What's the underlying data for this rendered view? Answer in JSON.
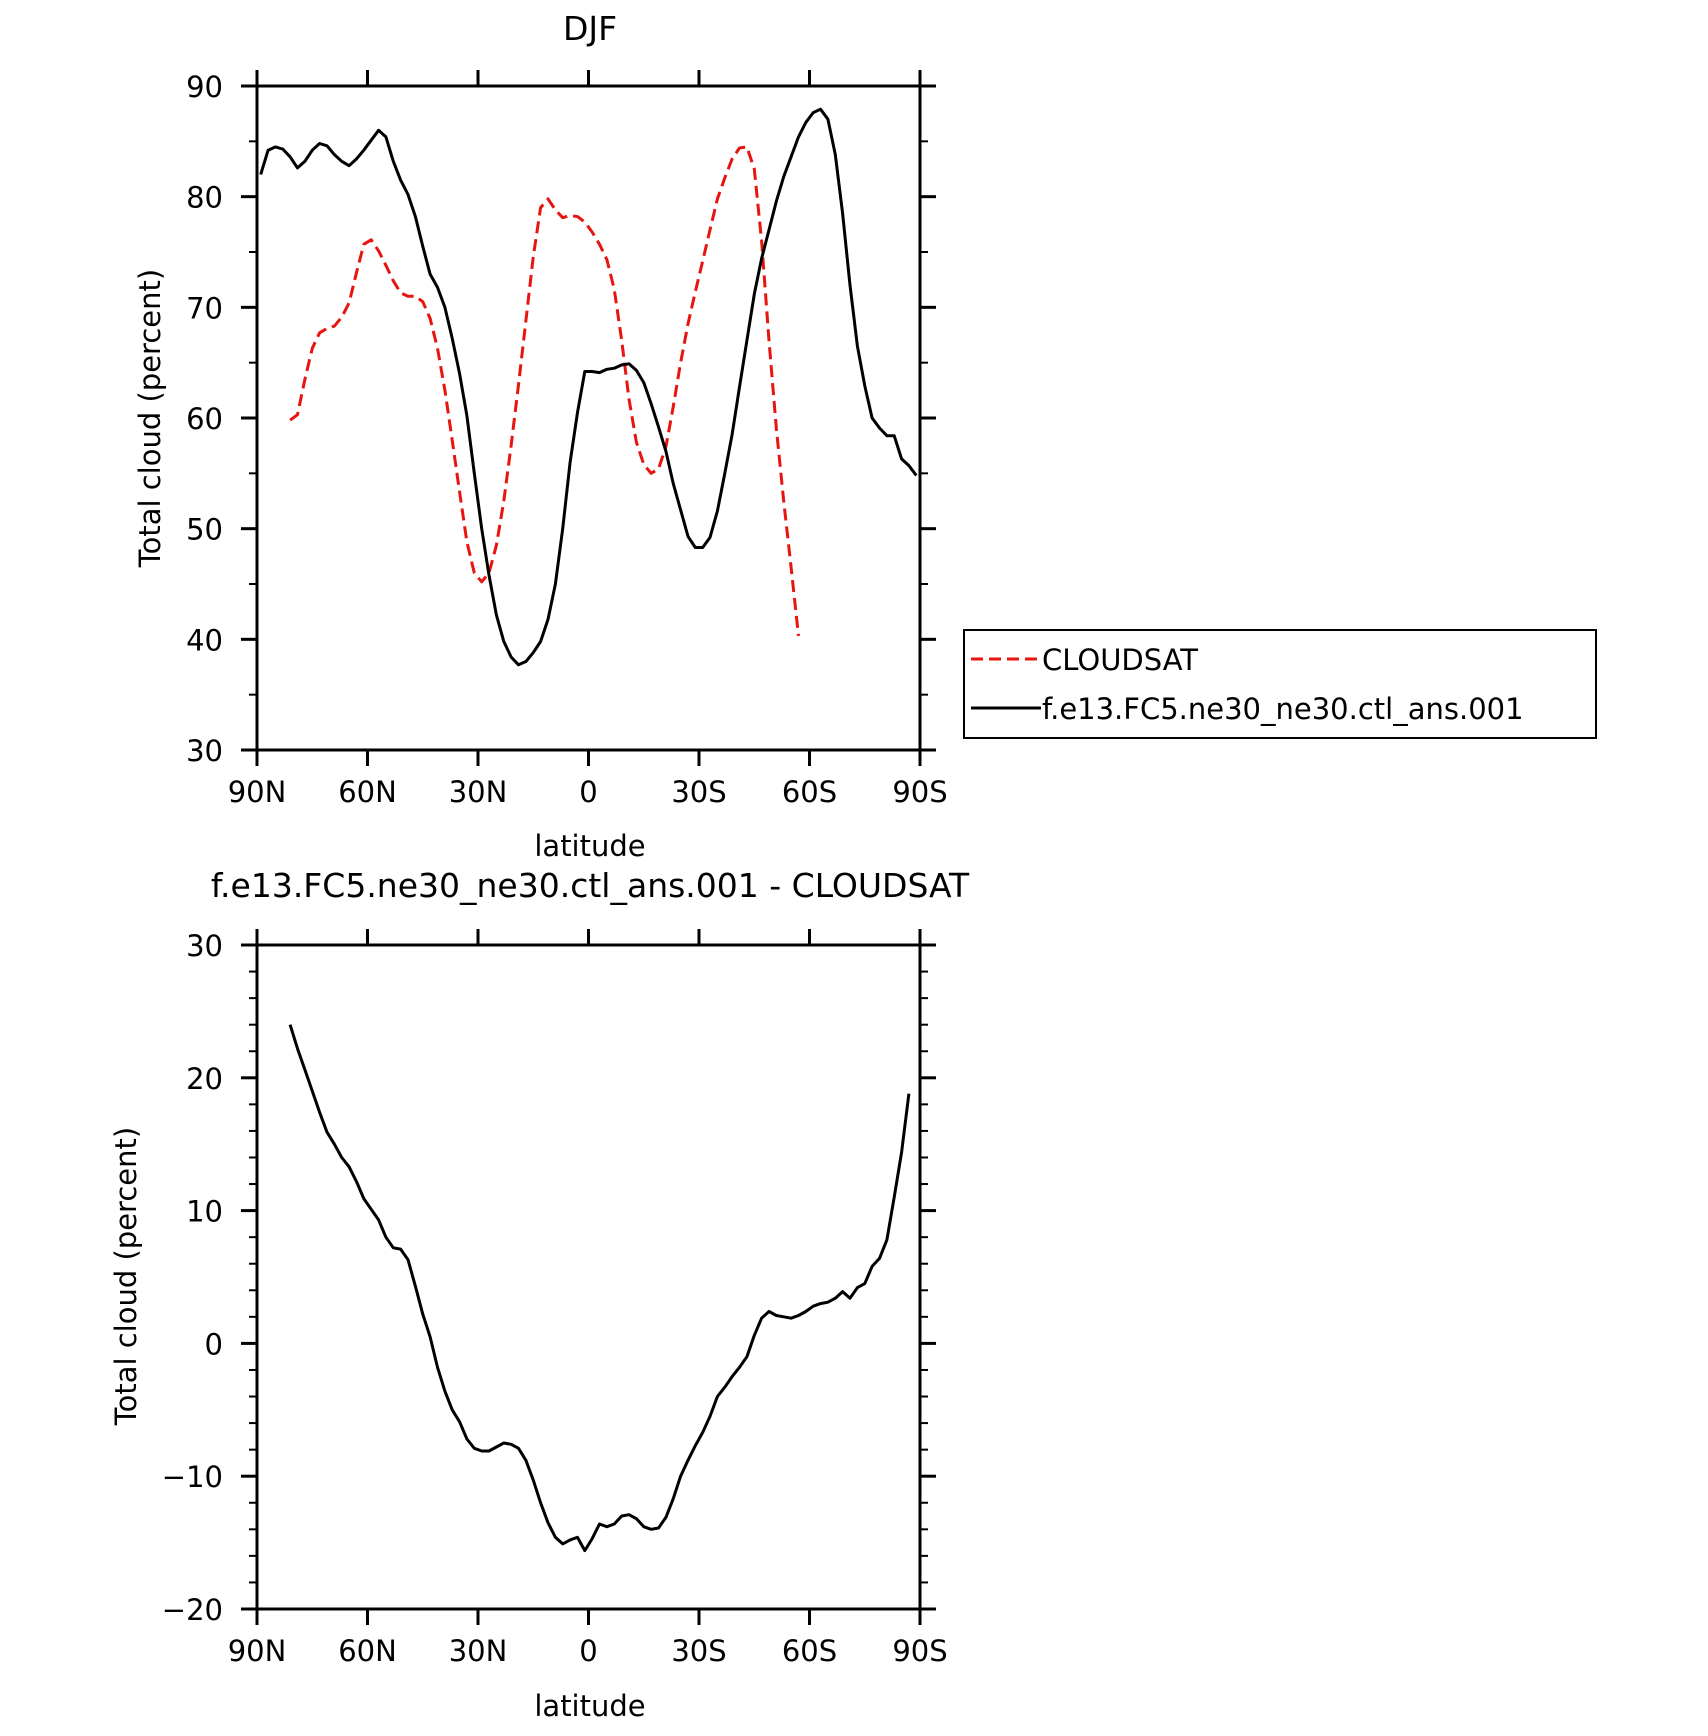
{
  "chart_data": [
    {
      "type": "line",
      "title": "DJF",
      "xlabel": "latitude",
      "ylabel": "Total cloud (percent)",
      "xlim": [
        90,
        -90
      ],
      "ylim": [
        30,
        90
      ],
      "x_axis_note": "latitude in degrees, positive = N, negative = S",
      "xticks": [
        {
          "value": 90,
          "label": "90N"
        },
        {
          "value": 60,
          "label": "60N"
        },
        {
          "value": 30,
          "label": "30N"
        },
        {
          "value": 0,
          "label": "0"
        },
        {
          "value": -30,
          "label": "30S"
        },
        {
          "value": -60,
          "label": "60S"
        },
        {
          "value": -90,
          "label": "90S"
        }
      ],
      "yticks": [
        {
          "value": 30,
          "label": "30"
        },
        {
          "value": 40,
          "label": "40"
        },
        {
          "value": 50,
          "label": "50"
        },
        {
          "value": 60,
          "label": "60"
        },
        {
          "value": 70,
          "label": "70"
        },
        {
          "value": 80,
          "label": "80"
        },
        {
          "value": 90,
          "label": "90"
        }
      ],
      "grid": false,
      "legend_position": "right",
      "series": [
        {
          "name": "CLOUDSAT",
          "color": "#e8140f",
          "dash": true,
          "points": [
            [
              81,
              59.8
            ],
            [
              79,
              60.3
            ],
            [
              77,
              63.5
            ],
            [
              75,
              66.3
            ],
            [
              73,
              67.7
            ],
            [
              71,
              68.1
            ],
            [
              69,
              68.3
            ],
            [
              67,
              69.1
            ],
            [
              65,
              70.4
            ],
            [
              63,
              73.1
            ],
            [
              61,
              75.7
            ],
            [
              59,
              76.1
            ],
            [
              57,
              75.1
            ],
            [
              55,
              73.8
            ],
            [
              53,
              72.4
            ],
            [
              51,
              71.3
            ],
            [
              49,
              71
            ],
            [
              47,
              71
            ],
            [
              45,
              70.5
            ],
            [
              43,
              69
            ],
            [
              41,
              66.3
            ],
            [
              39,
              62.5
            ],
            [
              37,
              58
            ],
            [
              35,
              53.3
            ],
            [
              33,
              48.8
            ],
            [
              31,
              46
            ],
            [
              29,
              45.2
            ],
            [
              27,
              46
            ],
            [
              25,
              48.5
            ],
            [
              23,
              52.5
            ],
            [
              21,
              57.5
            ],
            [
              19,
              63
            ],
            [
              17,
              68.8
            ],
            [
              15,
              74.6
            ],
            [
              13,
              79
            ],
            [
              11,
              79.8
            ],
            [
              9,
              78.8
            ],
            [
              7,
              78.1
            ],
            [
              5,
              78.3
            ],
            [
              3,
              78.2
            ],
            [
              1,
              77.7
            ],
            [
              -1,
              76.8
            ],
            [
              -3,
              75.7
            ],
            [
              -5,
              74.3
            ],
            [
              -7,
              71.6
            ],
            [
              -9,
              67
            ],
            [
              -11,
              61.7
            ],
            [
              -13,
              57.8
            ],
            [
              -15,
              55.8
            ],
            [
              -17,
              55
            ],
            [
              -19,
              55.4
            ],
            [
              -21,
              57.4
            ],
            [
              -23,
              61
            ],
            [
              -25,
              65
            ],
            [
              -27,
              68.5
            ],
            [
              -29,
              71.4
            ],
            [
              -31,
              74.2
            ],
            [
              -33,
              77
            ],
            [
              -35,
              79.8
            ],
            [
              -37,
              81.7
            ],
            [
              -39,
              83.4
            ],
            [
              -41,
              84.4
            ],
            [
              -43,
              84.5
            ],
            [
              -45,
              82.5
            ],
            [
              -47,
              76
            ],
            [
              -49,
              67
            ],
            [
              -51,
              59
            ],
            [
              -53,
              52.5
            ],
            [
              -55,
              46.5
            ],
            [
              -57,
              40.3
            ]
          ]
        },
        {
          "name": "f.e13.FC5.ne30_ne30.ctl_ans.001",
          "color": "#000000",
          "dash": false,
          "points": [
            [
              89,
              82
            ],
            [
              87,
              84.2
            ],
            [
              85,
              84.5
            ],
            [
              83,
              84.3
            ],
            [
              81,
              83.6
            ],
            [
              79,
              82.6
            ],
            [
              77,
              83.2
            ],
            [
              75,
              84.2
            ],
            [
              73,
              84.8
            ],
            [
              71,
              84.6
            ],
            [
              69,
              83.8
            ],
            [
              67,
              83.2
            ],
            [
              65,
              82.8
            ],
            [
              63,
              83.4
            ],
            [
              61,
              84.2
            ],
            [
              59,
              85.1
            ],
            [
              57,
              86
            ],
            [
              55,
              85.4
            ],
            [
              53,
              83.2
            ],
            [
              51,
              81.5
            ],
            [
              49,
              80.2
            ],
            [
              47,
              78.2
            ],
            [
              45,
              75.5
            ],
            [
              43,
              73
            ],
            [
              41,
              71.8
            ],
            [
              39,
              70
            ],
            [
              37,
              67.2
            ],
            [
              35,
              64
            ],
            [
              33,
              60.2
            ],
            [
              31,
              55
            ],
            [
              29,
              50
            ],
            [
              27,
              45.8
            ],
            [
              25,
              42.2
            ],
            [
              23,
              39.8
            ],
            [
              21,
              38.4
            ],
            [
              19,
              37.7
            ],
            [
              17,
              38
            ],
            [
              15,
              38.8
            ],
            [
              13,
              39.8
            ],
            [
              11,
              41.8
            ],
            [
              9,
              45
            ],
            [
              7,
              50
            ],
            [
              5,
              56
            ],
            [
              3,
              60.5
            ],
            [
              1,
              64.2
            ],
            [
              -1,
              64.2
            ],
            [
              -3,
              64.1
            ],
            [
              -5,
              64.4
            ],
            [
              -7,
              64.5
            ],
            [
              -9,
              64.8
            ],
            [
              -11,
              64.9
            ],
            [
              -13,
              64.3
            ],
            [
              -15,
              63.2
            ],
            [
              -17,
              61.3
            ],
            [
              -19,
              59.2
            ],
            [
              -21,
              57
            ],
            [
              -23,
              54.1
            ],
            [
              -25,
              51.7
            ],
            [
              -27,
              49.3
            ],
            [
              -29,
              48.3
            ],
            [
              -31,
              48.3
            ],
            [
              -33,
              49.2
            ],
            [
              -35,
              51.6
            ],
            [
              -37,
              55
            ],
            [
              -39,
              58.5
            ],
            [
              -41,
              62.8
            ],
            [
              -43,
              67
            ],
            [
              -45,
              71.2
            ],
            [
              -47,
              74.4
            ],
            [
              -49,
              77
            ],
            [
              -51,
              79.6
            ],
            [
              -53,
              81.8
            ],
            [
              -55,
              83.6
            ],
            [
              -57,
              85.4
            ],
            [
              -59,
              86.7
            ],
            [
              -61,
              87.6
            ],
            [
              -63,
              87.9
            ],
            [
              -65,
              87
            ],
            [
              -67,
              83.8
            ],
            [
              -69,
              78.5
            ],
            [
              -71,
              72
            ],
            [
              -73,
              66.5
            ],
            [
              -75,
              62.9
            ],
            [
              -77,
              60
            ],
            [
              -79,
              59.1
            ],
            [
              -81,
              58.4
            ],
            [
              -83,
              58.4
            ],
            [
              -85,
              56.3
            ],
            [
              -87,
              55.7
            ],
            [
              -89,
              54.8
            ]
          ]
        }
      ]
    },
    {
      "type": "line",
      "title": "f.e13.FC5.ne30_ne30.ctl_ans.001 - CLOUDSAT",
      "xlabel": "latitude",
      "ylabel": "Total cloud (percent)",
      "xlim": [
        90,
        -90
      ],
      "ylim": [
        -20,
        30
      ],
      "xticks": [
        {
          "value": 90,
          "label": "90N"
        },
        {
          "value": 60,
          "label": "60N"
        },
        {
          "value": 30,
          "label": "30N"
        },
        {
          "value": 0,
          "label": "0"
        },
        {
          "value": -30,
          "label": "30S"
        },
        {
          "value": -60,
          "label": "60S"
        },
        {
          "value": -90,
          "label": "90S"
        }
      ],
      "yticks": [
        {
          "value": -20,
          "label": "−20"
        },
        {
          "value": -10,
          "label": "−10"
        },
        {
          "value": 0,
          "label": "0"
        },
        {
          "value": 10,
          "label": "10"
        },
        {
          "value": 20,
          "label": "20"
        },
        {
          "value": 30,
          "label": "30"
        }
      ],
      "grid": false,
      "series": [
        {
          "color": "#000000",
          "dash": false,
          "points": [
            [
              81,
              24
            ],
            [
              79,
              22.2
            ],
            [
              77,
              20.6
            ],
            [
              75,
              19
            ],
            [
              73,
              17.4
            ],
            [
              71,
              15.9
            ],
            [
              69,
              15
            ],
            [
              67,
              14
            ],
            [
              65,
              13.3
            ],
            [
              63,
              12.2
            ],
            [
              61,
              10.9
            ],
            [
              59,
              10.1
            ],
            [
              57,
              9.3
            ],
            [
              55,
              8
            ],
            [
              53,
              7.2
            ],
            [
              51,
              7.1
            ],
            [
              49,
              6.3
            ],
            [
              47,
              4.3
            ],
            [
              45,
              2.2
            ],
            [
              43,
              0.5
            ],
            [
              41,
              -1.8
            ],
            [
              39,
              -3.6
            ],
            [
              37,
              -5
            ],
            [
              35,
              -5.9
            ],
            [
              33,
              -7.2
            ],
            [
              31,
              -7.9
            ],
            [
              29,
              -8.1
            ],
            [
              27,
              -8.1
            ],
            [
              25,
              -7.8
            ],
            [
              23,
              -7.5
            ],
            [
              21,
              -7.6
            ],
            [
              19,
              -7.9
            ],
            [
              17,
              -8.8
            ],
            [
              15,
              -10.3
            ],
            [
              13,
              -12
            ],
            [
              11,
              -13.5
            ],
            [
              9,
              -14.6
            ],
            [
              7,
              -15.1
            ],
            [
              5,
              -14.8
            ],
            [
              3,
              -14.6
            ],
            [
              1,
              -15.6
            ],
            [
              -1,
              -14.7
            ],
            [
              -3,
              -13.6
            ],
            [
              -5,
              -13.8
            ],
            [
              -7,
              -13.6
            ],
            [
              -9,
              -13
            ],
            [
              -11,
              -12.9
            ],
            [
              -13,
              -13.2
            ],
            [
              -15,
              -13.8
            ],
            [
              -17,
              -14
            ],
            [
              -19,
              -13.9
            ],
            [
              -21,
              -13.1
            ],
            [
              -23,
              -11.7
            ],
            [
              -25,
              -10
            ],
            [
              -27,
              -8.8
            ],
            [
              -29,
              -7.7
            ],
            [
              -31,
              -6.7
            ],
            [
              -33,
              -5.5
            ],
            [
              -35,
              -4
            ],
            [
              -37,
              -3.3
            ],
            [
              -39,
              -2.5
            ],
            [
              -41,
              -1.8
            ],
            [
              -43,
              -1
            ],
            [
              -45,
              0.6
            ],
            [
              -47,
              1.9
            ],
            [
              -49,
              2.4
            ],
            [
              -51,
              2.1
            ],
            [
              -53,
              2
            ],
            [
              -55,
              1.9
            ],
            [
              -57,
              2.1
            ],
            [
              -59,
              2.4
            ],
            [
              -61,
              2.8
            ],
            [
              -63,
              3
            ],
            [
              -65,
              3.1
            ],
            [
              -67,
              3.4
            ],
            [
              -69,
              3.9
            ],
            [
              -71,
              3.4
            ],
            [
              -73,
              4.2
            ],
            [
              -75,
              4.5
            ],
            [
              -77,
              5.8
            ],
            [
              -79,
              6.4
            ],
            [
              -81,
              7.8
            ],
            [
              -83,
              11
            ],
            [
              -85,
              14.4
            ],
            [
              -87,
              18.8
            ]
          ]
        }
      ]
    }
  ]
}
